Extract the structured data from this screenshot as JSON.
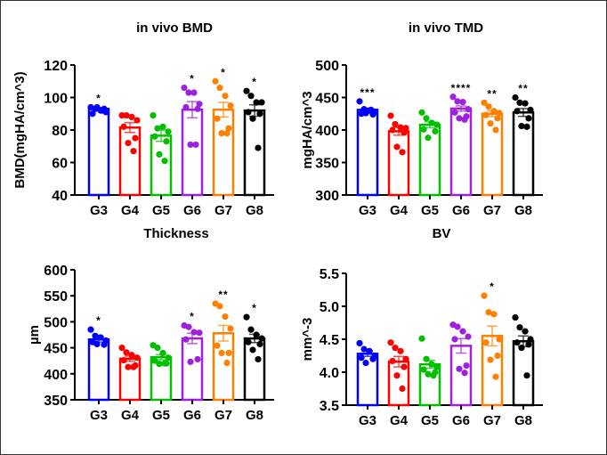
{
  "colors": {
    "G3": "#0000ff",
    "G4": "#ff0000",
    "G5": "#00c000",
    "G6": "#a020e0",
    "G7": "#ff8000",
    "G8": "#000000"
  },
  "chart_data": [
    {
      "type": "bar",
      "title": "in vivo BMD",
      "ylabel": "BMD(mgHA/cm^3)",
      "xlabel": "",
      "ylim": [
        40,
        120
      ],
      "yticks": [
        40,
        60,
        80,
        100,
        120
      ],
      "categories": [
        "G3",
        "G4",
        "G5",
        "G6",
        "G7",
        "G8"
      ],
      "means": [
        93,
        81.5,
        76.5,
        92.5,
        92.5,
        92
      ],
      "sem": [
        0.8,
        3,
        3.5,
        5,
        4.5,
        3.5
      ],
      "significance": [
        "*",
        "",
        "",
        "*",
        "*",
        "*"
      ],
      "points": [
        [
          94,
          93,
          92,
          91,
          90,
          93,
          94,
          92
        ],
        [
          89,
          89,
          88,
          86,
          82,
          75,
          72,
          67
        ],
        [
          89,
          81,
          82,
          79,
          76,
          73,
          65,
          61
        ],
        [
          106,
          103,
          103,
          96,
          94,
          93,
          71,
          71
        ],
        [
          110,
          106,
          101,
          95,
          87,
          81,
          78,
          78
        ],
        [
          104,
          101,
          97,
          97,
          91,
          90,
          87,
          69
        ]
      ]
    },
    {
      "type": "bar",
      "title": "in vivo TMD",
      "ylabel": "mgHA/cm^3",
      "xlabel": "",
      "ylim": [
        300,
        500
      ],
      "yticks": [
        300,
        350,
        400,
        450,
        500
      ],
      "categories": [
        "G3",
        "G4",
        "G5",
        "G6",
        "G7",
        "G8"
      ],
      "means": [
        431,
        398,
        408,
        433,
        425,
        427
      ],
      "sem": [
        2.5,
        6,
        4.5,
        4,
        4.5,
        6
      ],
      "significance": [
        "***",
        "",
        "",
        "****",
        "**",
        "**"
      ],
      "points": [
        [
          444,
          432,
          430,
          428,
          425,
          424,
          426,
          431
        ],
        [
          422,
          409,
          404,
          403,
          400,
          396,
          374,
          366
        ],
        [
          427,
          418,
          411,
          408,
          401,
          398,
          388
        ],
        [
          451,
          444,
          443,
          432,
          427,
          421,
          418,
          416
        ],
        [
          442,
          436,
          429,
          426,
          423,
          418,
          410,
          400
        ],
        [
          450,
          442,
          441,
          431,
          429,
          418,
          406,
          405
        ]
      ]
    },
    {
      "type": "bar",
      "title": "Thickness",
      "ylabel": "µm",
      "xlabel": "",
      "ylim": [
        350,
        600
      ],
      "yticks": [
        350,
        400,
        450,
        500,
        550,
        600
      ],
      "categories": [
        "G3",
        "G4",
        "G5",
        "G6",
        "G7",
        "G8"
      ],
      "means": [
        466,
        429,
        432,
        468,
        478,
        468
      ],
      "sem": [
        5,
        5,
        5,
        10,
        15,
        8
      ],
      "significance": [
        "*",
        "",
        "",
        "*",
        "**",
        "*"
      ],
      "points": [
        [
          485,
          473,
          470,
          464,
          461,
          456,
          457
        ],
        [
          450,
          441,
          436,
          431,
          426,
          416,
          413,
          413
        ],
        [
          455,
          450,
          440,
          431,
          425,
          420,
          419,
          420
        ],
        [
          493,
          490,
          480,
          479,
          466,
          428,
          423
        ],
        [
          535,
          530,
          510,
          487,
          454,
          440,
          440,
          421
        ],
        [
          509,
          485,
          475,
          468,
          461,
          457,
          446,
          428
        ]
      ]
    },
    {
      "type": "bar",
      "title": "BV",
      "ylabel": "mm^-3",
      "xlabel": "",
      "ylim": [
        3.5,
        5.5
      ],
      "yticks": [
        "3.5",
        "4.0",
        "4.5",
        "5.0",
        "5.5"
      ],
      "categories": [
        "G3",
        "G4",
        "G5",
        "G6",
        "G7",
        "G8"
      ],
      "means": [
        4.28,
        4.16,
        4.12,
        4.4,
        4.55,
        4.47
      ],
      "sem": [
        0.04,
        0.08,
        0.06,
        0.11,
        0.15,
        0.08
      ],
      "significance": [
        "",
        "",
        "",
        "",
        "*",
        ""
      ],
      "points": [
        [
          4.44,
          4.35,
          4.32,
          4.25,
          4.22,
          4.2,
          4.14
        ],
        [
          4.45,
          4.37,
          4.32,
          4.2,
          4.17,
          4.08,
          3.95,
          3.75
        ],
        [
          4.51,
          4.2,
          4.12,
          4.08,
          4.04,
          4.0,
          3.97,
          3.95
        ],
        [
          4.72,
          4.69,
          4.62,
          4.54,
          4.5,
          4.1,
          4.05,
          3.99
        ],
        [
          5.16,
          4.91,
          4.88,
          4.5,
          4.45,
          4.25,
          4.19,
          3.93
        ],
        [
          4.83,
          4.68,
          4.62,
          4.5,
          4.45,
          4.42,
          4.37,
          3.95
        ]
      ]
    }
  ]
}
